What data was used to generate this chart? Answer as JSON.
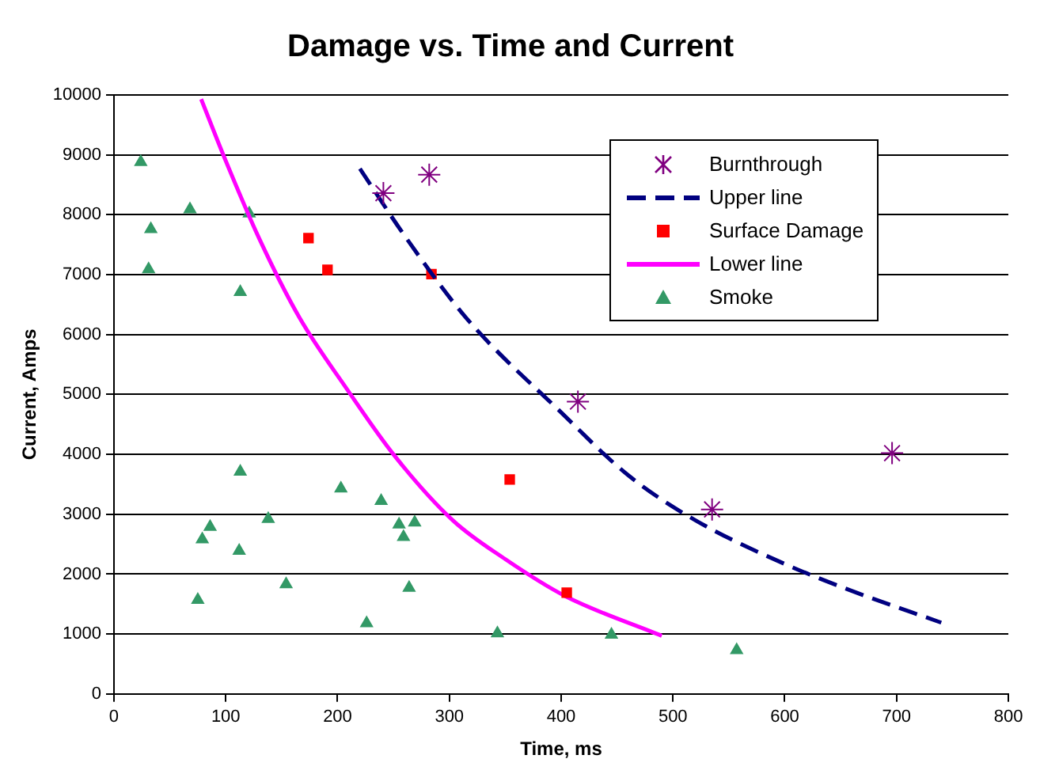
{
  "chart_data": {
    "type": "scatter",
    "title": "Damage vs. Time and Current",
    "xlabel": "Time, ms",
    "ylabel": "Current, Amps",
    "xlim": [
      0,
      800
    ],
    "xticks": [
      0,
      100,
      200,
      300,
      400,
      500,
      600,
      700,
      800
    ],
    "ylim": [
      0,
      10000
    ],
    "yticks": [
      0,
      1000,
      2000,
      3000,
      4000,
      5000,
      6000,
      7000,
      8000,
      9000,
      10000
    ],
    "grid": "y",
    "legend": "top right",
    "series": [
      {
        "name": "Burnthrough",
        "type": "scatter",
        "marker": "cross",
        "color": "#800080",
        "x": [
          241,
          282,
          415,
          535,
          696
        ],
        "values": [
          8360,
          8670,
          4880,
          3080,
          4020
        ]
      },
      {
        "name": "Upper line",
        "type": "line",
        "marker": "none",
        "line_style": "dashed",
        "color": "#000080",
        "x": [
          220,
          260,
          315,
          400,
          460,
          520,
          600,
          660,
          740
        ],
        "values": [
          8770,
          7650,
          6280,
          4700,
          3650,
          2900,
          2170,
          1720,
          1190
        ]
      },
      {
        "name": "Surface Damage",
        "type": "scatter",
        "marker": "square",
        "color": "#ff0000",
        "x": [
          174,
          191,
          284,
          354,
          405
        ],
        "values": [
          7610,
          7080,
          7010,
          3580,
          1690
        ]
      },
      {
        "name": "Lower line",
        "type": "line",
        "marker": "none",
        "line_style": "solid",
        "color": "#ff00ff",
        "x": [
          78,
          100,
          130,
          166,
          208,
          250,
          303,
          350,
          404,
          490
        ],
        "values": [
          9930,
          8900,
          7600,
          6280,
          5100,
          4000,
          2900,
          2250,
          1630,
          970
        ]
      },
      {
        "name": "Smoke",
        "type": "scatter",
        "marker": "triangle",
        "color": "#339966",
        "x": [
          24,
          33,
          31,
          68,
          121,
          113,
          113,
          203,
          239,
          138,
          86,
          79,
          255,
          269,
          259,
          112,
          154,
          75,
          264,
          226,
          343,
          445,
          557
        ],
        "values": [
          8880,
          7760,
          7090,
          8090,
          8020,
          6710,
          3710,
          3430,
          3220,
          2920,
          2790,
          2580,
          2830,
          2860,
          2620,
          2390,
          1830,
          1570,
          1770,
          1180,
          1010,
          990,
          730
        ]
      }
    ]
  }
}
